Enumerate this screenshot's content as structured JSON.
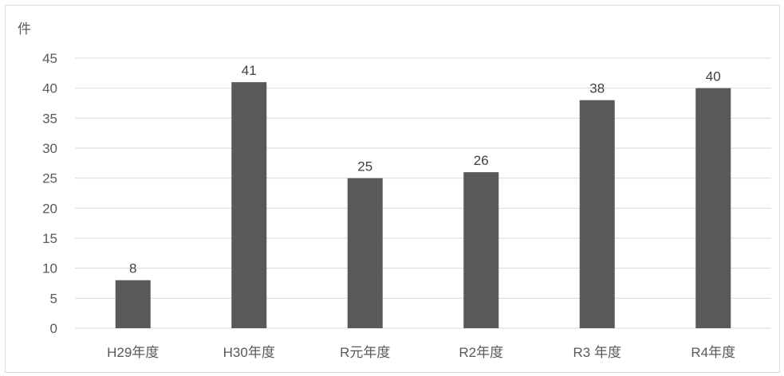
{
  "chart_data": {
    "type": "bar",
    "ylabel": "件",
    "categories": [
      "H29年度",
      "H30年度",
      "R元年度",
      "R2年度",
      "R3 年度",
      "R4年度"
    ],
    "values": [
      8,
      41,
      25,
      26,
      38,
      40
    ],
    "ylim": [
      0,
      45
    ],
    "yticks": [
      0,
      5,
      10,
      15,
      20,
      25,
      30,
      35,
      40,
      45
    ],
    "grid": true,
    "legend": "none",
    "bar_color": "#595959"
  }
}
